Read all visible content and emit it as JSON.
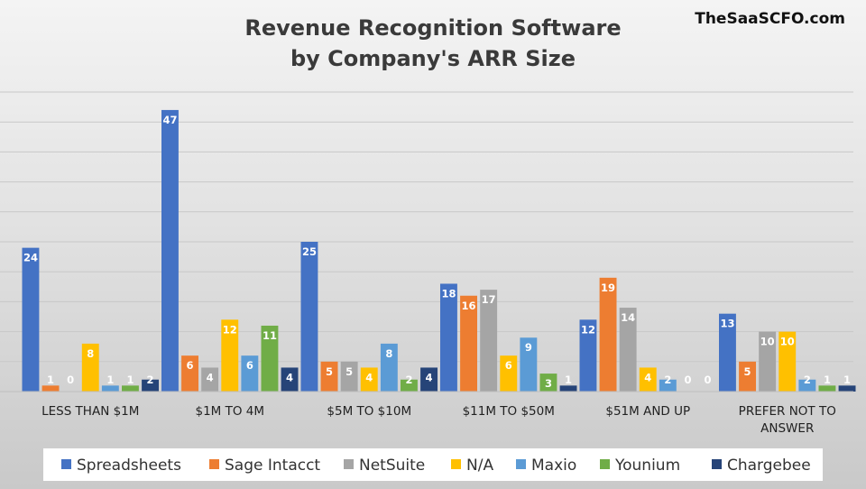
{
  "brand": "TheSaaSCFO.com",
  "chart_data": {
    "type": "bar",
    "title": "Revenue Recognition Software",
    "subtitle": "by Company's ARR Size",
    "categories": [
      [
        "LESS THAN $1M"
      ],
      [
        "$1M TO 4M"
      ],
      [
        "$5M TO $10M"
      ],
      [
        "$11M TO $50M"
      ],
      [
        "$51M AND UP"
      ],
      [
        "PREFER NOT TO",
        "ANSWER"
      ]
    ],
    "series": [
      {
        "name": "Spreadsheets",
        "color": "#4472c4",
        "values": [
          24,
          47,
          25,
          18,
          12,
          13
        ]
      },
      {
        "name": "Sage Intacct",
        "color": "#ed7d31",
        "values": [
          1,
          6,
          5,
          16,
          19,
          5
        ]
      },
      {
        "name": "NetSuite",
        "color": "#a5a5a5",
        "values": [
          0,
          4,
          5,
          17,
          14,
          10
        ]
      },
      {
        "name": "N/A",
        "color": "#ffc000",
        "values": [
          8,
          12,
          4,
          6,
          4,
          10
        ]
      },
      {
        "name": "Maxio",
        "color": "#5b9bd5",
        "values": [
          1,
          6,
          8,
          9,
          2,
          2
        ]
      },
      {
        "name": "Younium",
        "color": "#70ad47",
        "values": [
          1,
          11,
          2,
          3,
          0,
          1
        ]
      },
      {
        "name": "Chargebee",
        "color": "#264478",
        "values": [
          2,
          4,
          4,
          1,
          0,
          1
        ]
      }
    ],
    "ylim": [
      0,
      50
    ],
    "grid": true,
    "legend_position": "bottom"
  }
}
